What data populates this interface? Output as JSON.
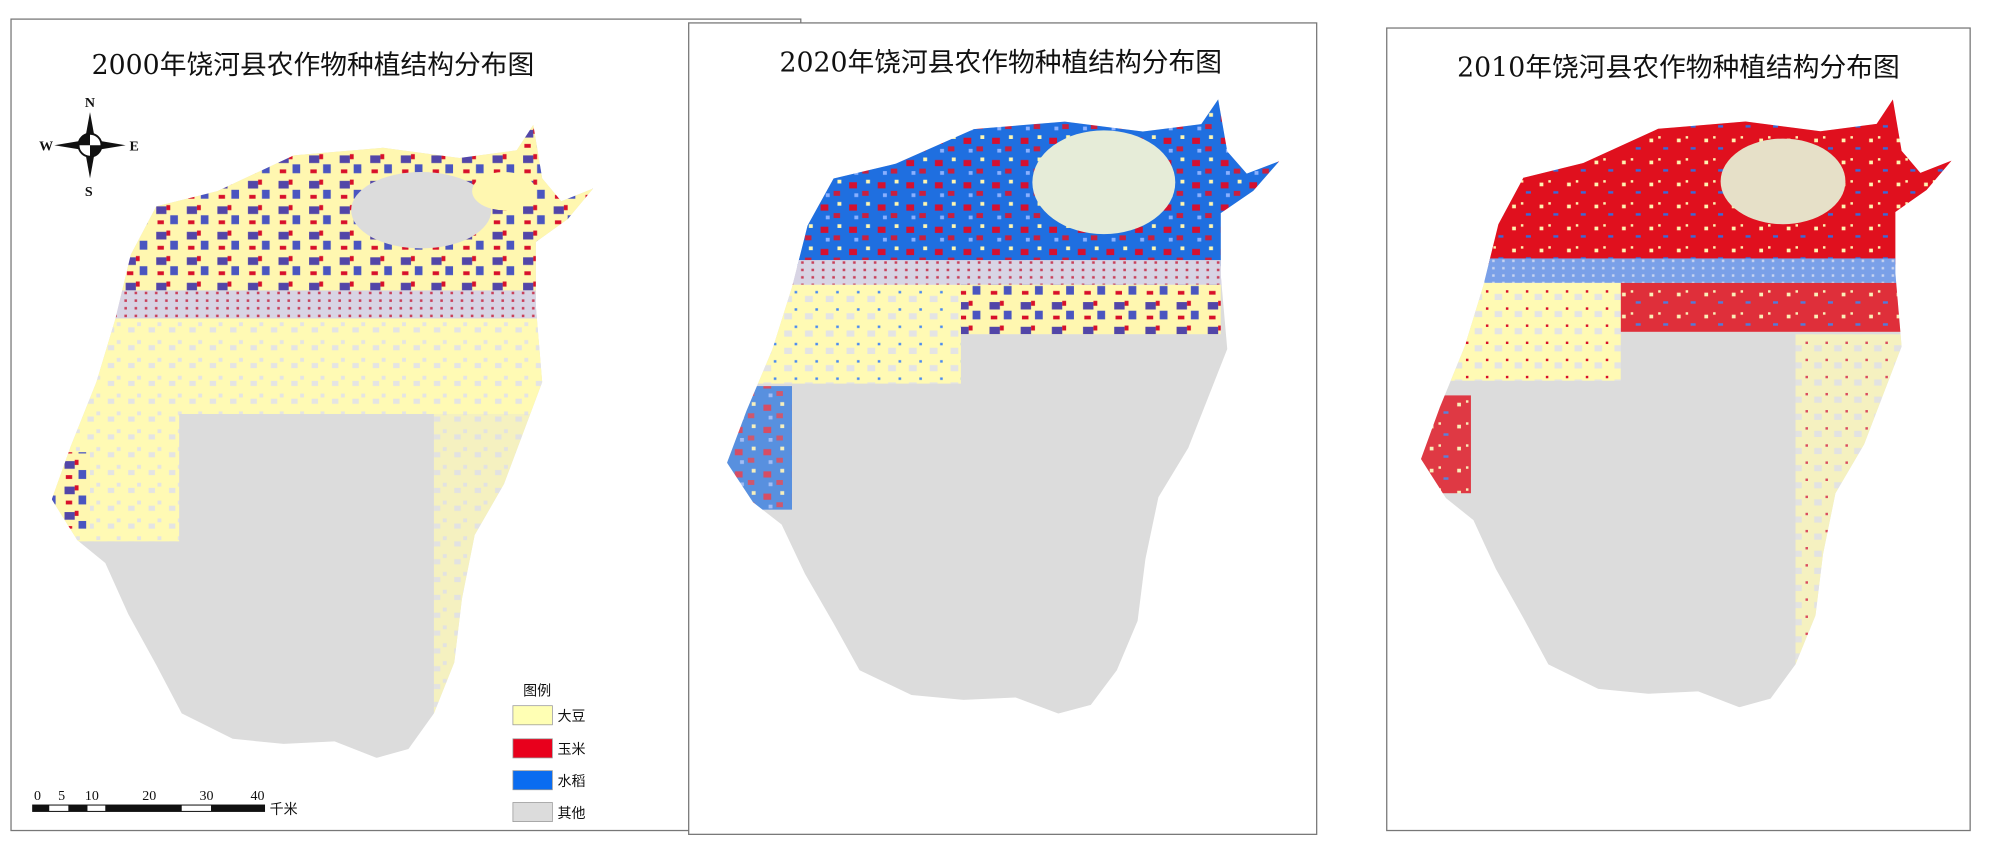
{
  "panels": [
    {
      "title": "2000年饶河县农作物种植结构分布图",
      "dominant_crop": "mixed 大豆 / 玉米 / 水稻"
    },
    {
      "title": "2020年饶河县农作物种植结构分布图",
      "dominant_crop": "水稻"
    },
    {
      "title": "2010年饶河县农作物种植结构分布图",
      "dominant_crop": "玉米"
    }
  ],
  "compass": {
    "n": "N",
    "s": "S",
    "w": "W",
    "e": "E"
  },
  "scale_bar": {
    "labels": [
      "0",
      "5",
      "10",
      "20",
      "30",
      "40"
    ],
    "unit": "千米"
  },
  "legend": {
    "title": "图例",
    "items": [
      {
        "label": "大豆",
        "color": "#ffffb4"
      },
      {
        "label": "玉米",
        "color": "#e8001c"
      },
      {
        "label": "水稻",
        "color": "#0a6cf0"
      },
      {
        "label": "其他",
        "color": "#dcdcdc"
      }
    ]
  }
}
